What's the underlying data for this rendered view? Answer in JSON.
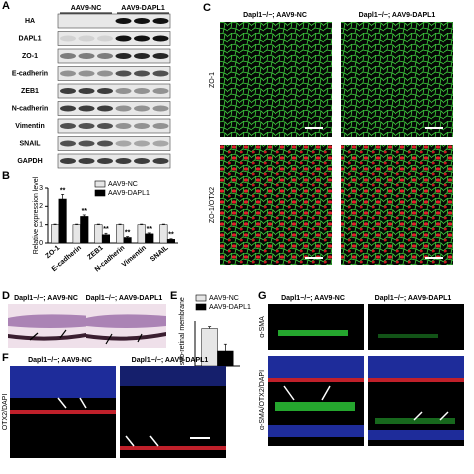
{
  "panel_labels": [
    "A",
    "B",
    "C",
    "D",
    "E",
    "F",
    "G"
  ],
  "blot": {
    "columns": [
      "AAV9-NC",
      "AAV9-DAPL1"
    ],
    "rows": [
      "HA",
      "DAPL1",
      "ZO-1",
      "E-cadherin",
      "ZEB1",
      "N-cadherin",
      "Vimentin",
      "SNAIL",
      "GAPDH"
    ]
  },
  "chart_data": [
    {
      "type": "bar",
      "y_label": "Relative expression level",
      "categories": [
        "ZO-1",
        "E-cadherin",
        "ZEB1",
        "N-cadherin",
        "Vimentin",
        "SNAIL"
      ],
      "series": [
        {
          "name": "AAV9-NC",
          "color": "#e6e6e6",
          "values": [
            1,
            1,
            1,
            1,
            1,
            1
          ],
          "errors": [
            0.03,
            0.03,
            0.03,
            0.03,
            0.03,
            0.03
          ]
        },
        {
          "name": "AAV9-DAPL1",
          "color": "#000000",
          "values": [
            2.4,
            1.45,
            0.45,
            0.3,
            0.5,
            0.2
          ],
          "errors": [
            0.25,
            0.08,
            0.08,
            0.05,
            0.05,
            0.03
          ]
        }
      ],
      "annotations": [
        "**",
        "**",
        "**",
        "**",
        "**",
        "**"
      ],
      "ylim": [
        0,
        3
      ],
      "yticks": [
        0,
        1,
        2,
        3
      ]
    },
    {
      "type": "bar",
      "y_label": "Area of sub-retinal membrane",
      "categories": [
        null
      ],
      "series": [
        {
          "name": "AAV9-NC",
          "color": "#e6e6e6",
          "values": [
            100
          ],
          "errors": [
            5
          ]
        },
        {
          "name": "AAV9-DAPL1",
          "color": "#000000",
          "values": [
            40
          ],
          "errors": [
            18
          ]
        }
      ],
      "ylim": [
        0,
        120
      ]
    }
  ],
  "panel_c": {
    "columns": [
      "Dapl1−/−; AAV9-NC",
      "Dapl1−/−; AAV9-DAPL1"
    ],
    "rows": [
      "ZO-1",
      "ZO-1/OTX2"
    ]
  },
  "panel_d": {
    "columns": [
      "Dapl1−/−; AAV9-NC",
      "Dapl1−/−; AAV9-DAPL1"
    ]
  },
  "panel_f": {
    "columns": [
      "Dapl1−/−; AAV9-NC",
      "Dapl1−/−; AAV9-DAPL1"
    ],
    "rows": [
      "OTX2/DAPI"
    ]
  },
  "panel_g": {
    "columns": [
      "Dapl1−/−; AAV9-NC",
      "Dapl1−/−; AAV9-DAPL1"
    ],
    "rows": [
      "α-SMA",
      "α-SMA/OTX2/DAPI"
    ]
  }
}
